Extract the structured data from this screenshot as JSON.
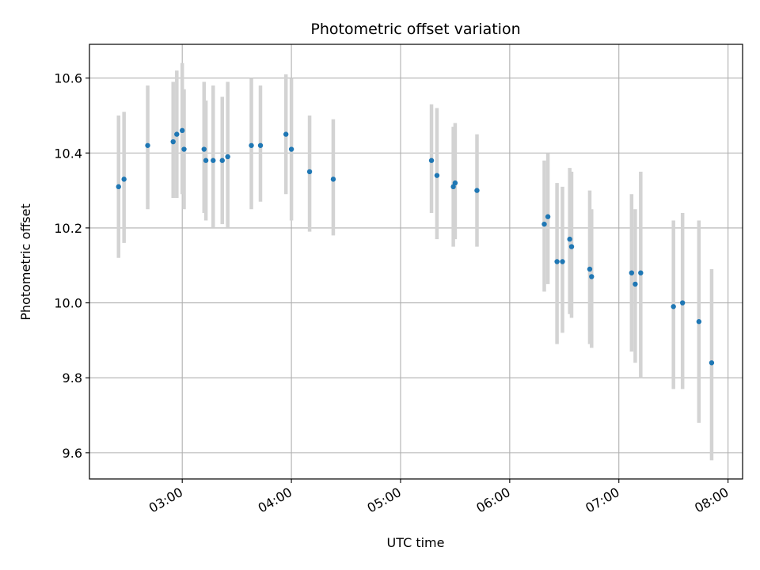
{
  "chart_data": {
    "type": "scatter",
    "title": "Photometric offset variation",
    "xlabel": "UTC time",
    "ylabel": "Photometric offset",
    "x_axis_type": "time",
    "xlim": [
      "02:09",
      "08:08"
    ],
    "ylim": [
      9.53,
      10.69
    ],
    "x_tick_labels": [
      "03:00",
      "04:00",
      "05:00",
      "06:00",
      "07:00",
      "08:00"
    ],
    "y_tick_labels": [
      "9.6",
      "9.8",
      "10.0",
      "10.2",
      "10.4",
      "10.6"
    ],
    "grid": true,
    "colors": {
      "points": "#1f77b4",
      "error_bars": "#d3d3d3",
      "grid": "#b0b0b0"
    },
    "points": [
      {
        "x": "02:25",
        "y": 10.31,
        "y_low": 10.12,
        "y_high": 10.5
      },
      {
        "x": "02:28",
        "y": 10.33,
        "y_low": 10.16,
        "y_high": 10.51
      },
      {
        "x": "02:41",
        "y": 10.42,
        "y_low": 10.25,
        "y_high": 10.58
      },
      {
        "x": "02:55",
        "y": 10.43,
        "y_low": 10.28,
        "y_high": 10.59
      },
      {
        "x": "02:57",
        "y": 10.45,
        "y_low": 10.28,
        "y_high": 10.62
      },
      {
        "x": "03:00",
        "y": 10.46,
        "y_low": 10.29,
        "y_high": 10.64
      },
      {
        "x": "03:01",
        "y": 10.41,
        "y_low": 10.25,
        "y_high": 10.57
      },
      {
        "x": "03:12",
        "y": 10.41,
        "y_low": 10.24,
        "y_high": 10.59
      },
      {
        "x": "03:13",
        "y": 10.38,
        "y_low": 10.22,
        "y_high": 10.54
      },
      {
        "x": "03:17",
        "y": 10.38,
        "y_low": 10.2,
        "y_high": 10.58
      },
      {
        "x": "03:22",
        "y": 10.38,
        "y_low": 10.21,
        "y_high": 10.55
      },
      {
        "x": "03:25",
        "y": 10.39,
        "y_low": 10.2,
        "y_high": 10.59
      },
      {
        "x": "03:38",
        "y": 10.42,
        "y_low": 10.25,
        "y_high": 10.6
      },
      {
        "x": "03:43",
        "y": 10.42,
        "y_low": 10.27,
        "y_high": 10.58
      },
      {
        "x": "03:57",
        "y": 10.45,
        "y_low": 10.29,
        "y_high": 10.61
      },
      {
        "x": "04:00",
        "y": 10.41,
        "y_low": 10.22,
        "y_high": 10.6
      },
      {
        "x": "04:10",
        "y": 10.35,
        "y_low": 10.19,
        "y_high": 10.5
      },
      {
        "x": "04:23",
        "y": 10.33,
        "y_low": 10.18,
        "y_high": 10.49
      },
      {
        "x": "05:17",
        "y": 10.38,
        "y_low": 10.24,
        "y_high": 10.53
      },
      {
        "x": "05:20",
        "y": 10.34,
        "y_low": 10.17,
        "y_high": 10.52
      },
      {
        "x": "05:29",
        "y": 10.31,
        "y_low": 10.15,
        "y_high": 10.47
      },
      {
        "x": "05:30",
        "y": 10.32,
        "y_low": 10.17,
        "y_high": 10.48
      },
      {
        "x": "05:42",
        "y": 10.3,
        "y_low": 10.15,
        "y_high": 10.45
      },
      {
        "x": "06:19",
        "y": 10.21,
        "y_low": 10.03,
        "y_high": 10.38
      },
      {
        "x": "06:21",
        "y": 10.23,
        "y_low": 10.05,
        "y_high": 10.4
      },
      {
        "x": "06:26",
        "y": 10.11,
        "y_low": 9.89,
        "y_high": 10.32
      },
      {
        "x": "06:29",
        "y": 10.11,
        "y_low": 9.92,
        "y_high": 10.31
      },
      {
        "x": "06:33",
        "y": 10.17,
        "y_low": 9.97,
        "y_high": 10.36
      },
      {
        "x": "06:34",
        "y": 10.15,
        "y_low": 9.96,
        "y_high": 10.35
      },
      {
        "x": "06:44",
        "y": 10.09,
        "y_low": 9.89,
        "y_high": 10.3
      },
      {
        "x": "06:45",
        "y": 10.07,
        "y_low": 9.88,
        "y_high": 10.25
      },
      {
        "x": "07:07",
        "y": 10.08,
        "y_low": 9.87,
        "y_high": 10.29
      },
      {
        "x": "07:09",
        "y": 10.05,
        "y_low": 9.84,
        "y_high": 10.25
      },
      {
        "x": "07:12",
        "y": 10.08,
        "y_low": 9.8,
        "y_high": 10.35
      },
      {
        "x": "07:30",
        "y": 9.99,
        "y_low": 9.77,
        "y_high": 10.22
      },
      {
        "x": "07:35",
        "y": 10.0,
        "y_low": 9.77,
        "y_high": 10.24
      },
      {
        "x": "07:44",
        "y": 9.95,
        "y_low": 9.68,
        "y_high": 10.22
      },
      {
        "x": "07:51",
        "y": 9.84,
        "y_low": 9.58,
        "y_high": 10.09
      }
    ]
  }
}
